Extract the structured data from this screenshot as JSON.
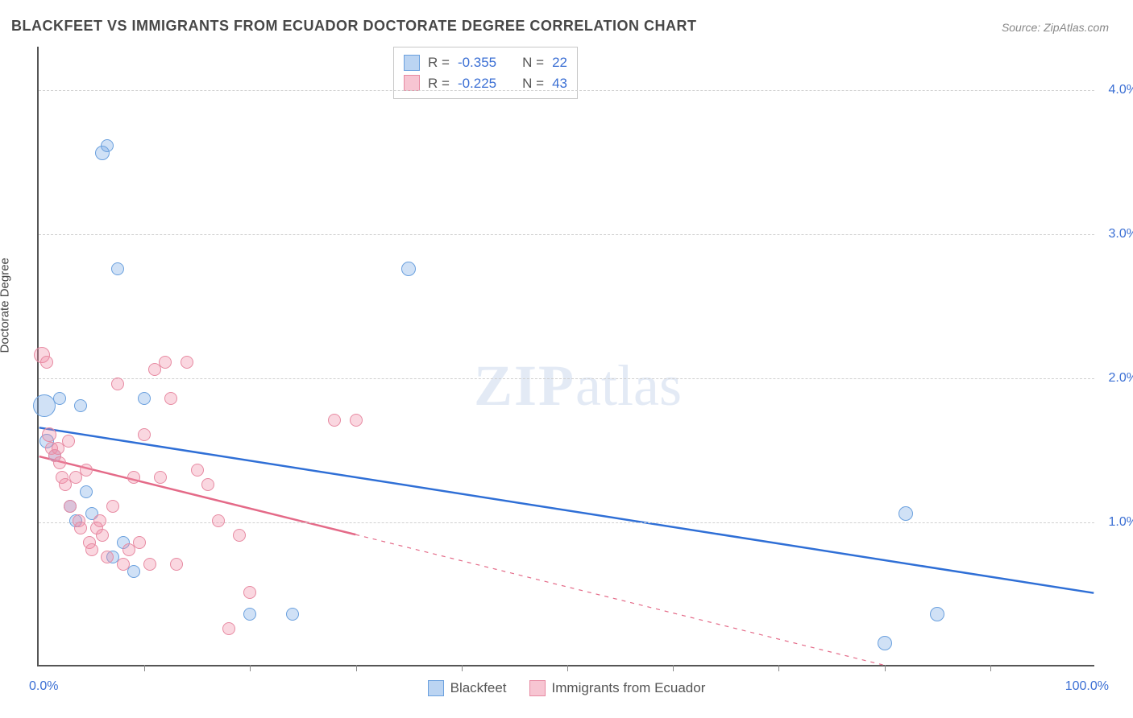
{
  "title": "BLACKFEET VS IMMIGRANTS FROM ECUADOR DOCTORATE DEGREE CORRELATION CHART",
  "source": "Source: ZipAtlas.com",
  "watermark": {
    "zip": "ZIP",
    "atlas": "atlas"
  },
  "ylabel": "Doctorate Degree",
  "axes": {
    "xlim": [
      0,
      100
    ],
    "ylim": [
      0,
      4.3
    ],
    "x_ticks": [
      0,
      10,
      20,
      30,
      40,
      50,
      60,
      70,
      80,
      90,
      100
    ],
    "y_ticks": [
      1.0,
      2.0,
      3.0,
      4.0
    ],
    "y_tick_labels": [
      "1.0%",
      "2.0%",
      "3.0%",
      "4.0%"
    ],
    "x_label_0": "0.0%",
    "x_label_100": "100.0%",
    "axis_color": "#555555",
    "grid_color": "#d0d0d0",
    "tick_label_color": "#3b6fd4"
  },
  "series": [
    {
      "name": "Blackfeet",
      "fill": "rgba(120,170,230,0.35)",
      "stroke": "#6aa0de",
      "points": [
        {
          "x": 0.5,
          "y": 1.8,
          "r": 14
        },
        {
          "x": 0.8,
          "y": 1.55,
          "r": 9
        },
        {
          "x": 1.5,
          "y": 1.45,
          "r": 8
        },
        {
          "x": 2.0,
          "y": 1.85,
          "r": 8
        },
        {
          "x": 3.0,
          "y": 1.1,
          "r": 8
        },
        {
          "x": 3.5,
          "y": 1.0,
          "r": 8
        },
        {
          "x": 4.0,
          "y": 1.8,
          "r": 8
        },
        {
          "x": 4.5,
          "y": 1.2,
          "r": 8
        },
        {
          "x": 5.0,
          "y": 1.05,
          "r": 8
        },
        {
          "x": 6.0,
          "y": 3.55,
          "r": 9
        },
        {
          "x": 6.5,
          "y": 3.6,
          "r": 8
        },
        {
          "x": 7.0,
          "y": 0.75,
          "r": 8
        },
        {
          "x": 7.5,
          "y": 2.75,
          "r": 8
        },
        {
          "x": 8.0,
          "y": 0.85,
          "r": 8
        },
        {
          "x": 9.0,
          "y": 0.65,
          "r": 8
        },
        {
          "x": 10.0,
          "y": 1.85,
          "r": 8
        },
        {
          "x": 20.0,
          "y": 0.35,
          "r": 8
        },
        {
          "x": 24.0,
          "y": 0.35,
          "r": 8
        },
        {
          "x": 35.0,
          "y": 2.75,
          "r": 9
        },
        {
          "x": 80.0,
          "y": 0.15,
          "r": 9
        },
        {
          "x": 82.0,
          "y": 1.05,
          "r": 9
        },
        {
          "x": 85.0,
          "y": 0.35,
          "r": 9
        }
      ],
      "trend": {
        "x1": 0,
        "y1": 1.65,
        "x2": 100,
        "y2": 0.5,
        "solid_until": 100,
        "color": "#2f6fd6",
        "width": 2.5
      }
    },
    {
      "name": "Immigrants from Ecuador",
      "fill": "rgba(240,140,165,0.35)",
      "stroke": "#e78aa2",
      "points": [
        {
          "x": 0.3,
          "y": 2.15,
          "r": 10
        },
        {
          "x": 0.8,
          "y": 2.1,
          "r": 8
        },
        {
          "x": 1.0,
          "y": 1.6,
          "r": 9
        },
        {
          "x": 1.2,
          "y": 1.5,
          "r": 8
        },
        {
          "x": 1.5,
          "y": 1.45,
          "r": 8
        },
        {
          "x": 1.8,
          "y": 1.5,
          "r": 8
        },
        {
          "x": 2.0,
          "y": 1.4,
          "r": 8
        },
        {
          "x": 2.2,
          "y": 1.3,
          "r": 8
        },
        {
          "x": 2.5,
          "y": 1.25,
          "r": 8
        },
        {
          "x": 2.8,
          "y": 1.55,
          "r": 8
        },
        {
          "x": 3.0,
          "y": 1.1,
          "r": 8
        },
        {
          "x": 3.5,
          "y": 1.3,
          "r": 8
        },
        {
          "x": 3.8,
          "y": 1.0,
          "r": 8
        },
        {
          "x": 4.0,
          "y": 0.95,
          "r": 8
        },
        {
          "x": 4.5,
          "y": 1.35,
          "r": 8
        },
        {
          "x": 4.8,
          "y": 0.85,
          "r": 8
        },
        {
          "x": 5.0,
          "y": 0.8,
          "r": 8
        },
        {
          "x": 5.5,
          "y": 0.95,
          "r": 8
        },
        {
          "x": 5.8,
          "y": 1.0,
          "r": 8
        },
        {
          "x": 6.0,
          "y": 0.9,
          "r": 8
        },
        {
          "x": 6.5,
          "y": 0.75,
          "r": 8
        },
        {
          "x": 7.0,
          "y": 1.1,
          "r": 8
        },
        {
          "x": 7.5,
          "y": 1.95,
          "r": 8
        },
        {
          "x": 8.0,
          "y": 0.7,
          "r": 8
        },
        {
          "x": 8.5,
          "y": 0.8,
          "r": 8
        },
        {
          "x": 9.0,
          "y": 1.3,
          "r": 8
        },
        {
          "x": 9.5,
          "y": 0.85,
          "r": 8
        },
        {
          "x": 10.0,
          "y": 1.6,
          "r": 8
        },
        {
          "x": 10.5,
          "y": 0.7,
          "r": 8
        },
        {
          "x": 11.0,
          "y": 2.05,
          "r": 8
        },
        {
          "x": 11.5,
          "y": 1.3,
          "r": 8
        },
        {
          "x": 12.0,
          "y": 2.1,
          "r": 8
        },
        {
          "x": 12.5,
          "y": 1.85,
          "r": 8
        },
        {
          "x": 13.0,
          "y": 0.7,
          "r": 8
        },
        {
          "x": 14.0,
          "y": 2.1,
          "r": 8
        },
        {
          "x": 15.0,
          "y": 1.35,
          "r": 8
        },
        {
          "x": 16.0,
          "y": 1.25,
          "r": 8
        },
        {
          "x": 17.0,
          "y": 1.0,
          "r": 8
        },
        {
          "x": 18.0,
          "y": 0.25,
          "r": 8
        },
        {
          "x": 19.0,
          "y": 0.9,
          "r": 8
        },
        {
          "x": 20.0,
          "y": 0.5,
          "r": 8
        },
        {
          "x": 28.0,
          "y": 1.7,
          "r": 8
        },
        {
          "x": 30.0,
          "y": 1.7,
          "r": 8
        }
      ],
      "trend": {
        "x1": 0,
        "y1": 1.45,
        "x2": 80,
        "y2": 0.0,
        "solid_until": 30,
        "color": "#e46a88",
        "width": 2.5,
        "dash": "5,6"
      }
    }
  ],
  "stats_legend": {
    "rows": [
      {
        "swatch_fill": "rgba(120,170,230,0.5)",
        "swatch_stroke": "#6aa0de",
        "r_label": "R =",
        "r_val": "-0.355",
        "n_label": "N =",
        "n_val": "22"
      },
      {
        "swatch_fill": "rgba(240,140,165,0.5)",
        "swatch_stroke": "#e78aa2",
        "r_label": "R =",
        "r_val": "-0.225",
        "n_label": "N =",
        "n_val": "43"
      }
    ]
  },
  "bottom_legend": {
    "items": [
      {
        "swatch_fill": "rgba(120,170,230,0.5)",
        "swatch_stroke": "#6aa0de",
        "label": "Blackfeet"
      },
      {
        "swatch_fill": "rgba(240,140,165,0.5)",
        "swatch_stroke": "#e78aa2",
        "label": "Immigrants from Ecuador"
      }
    ]
  }
}
